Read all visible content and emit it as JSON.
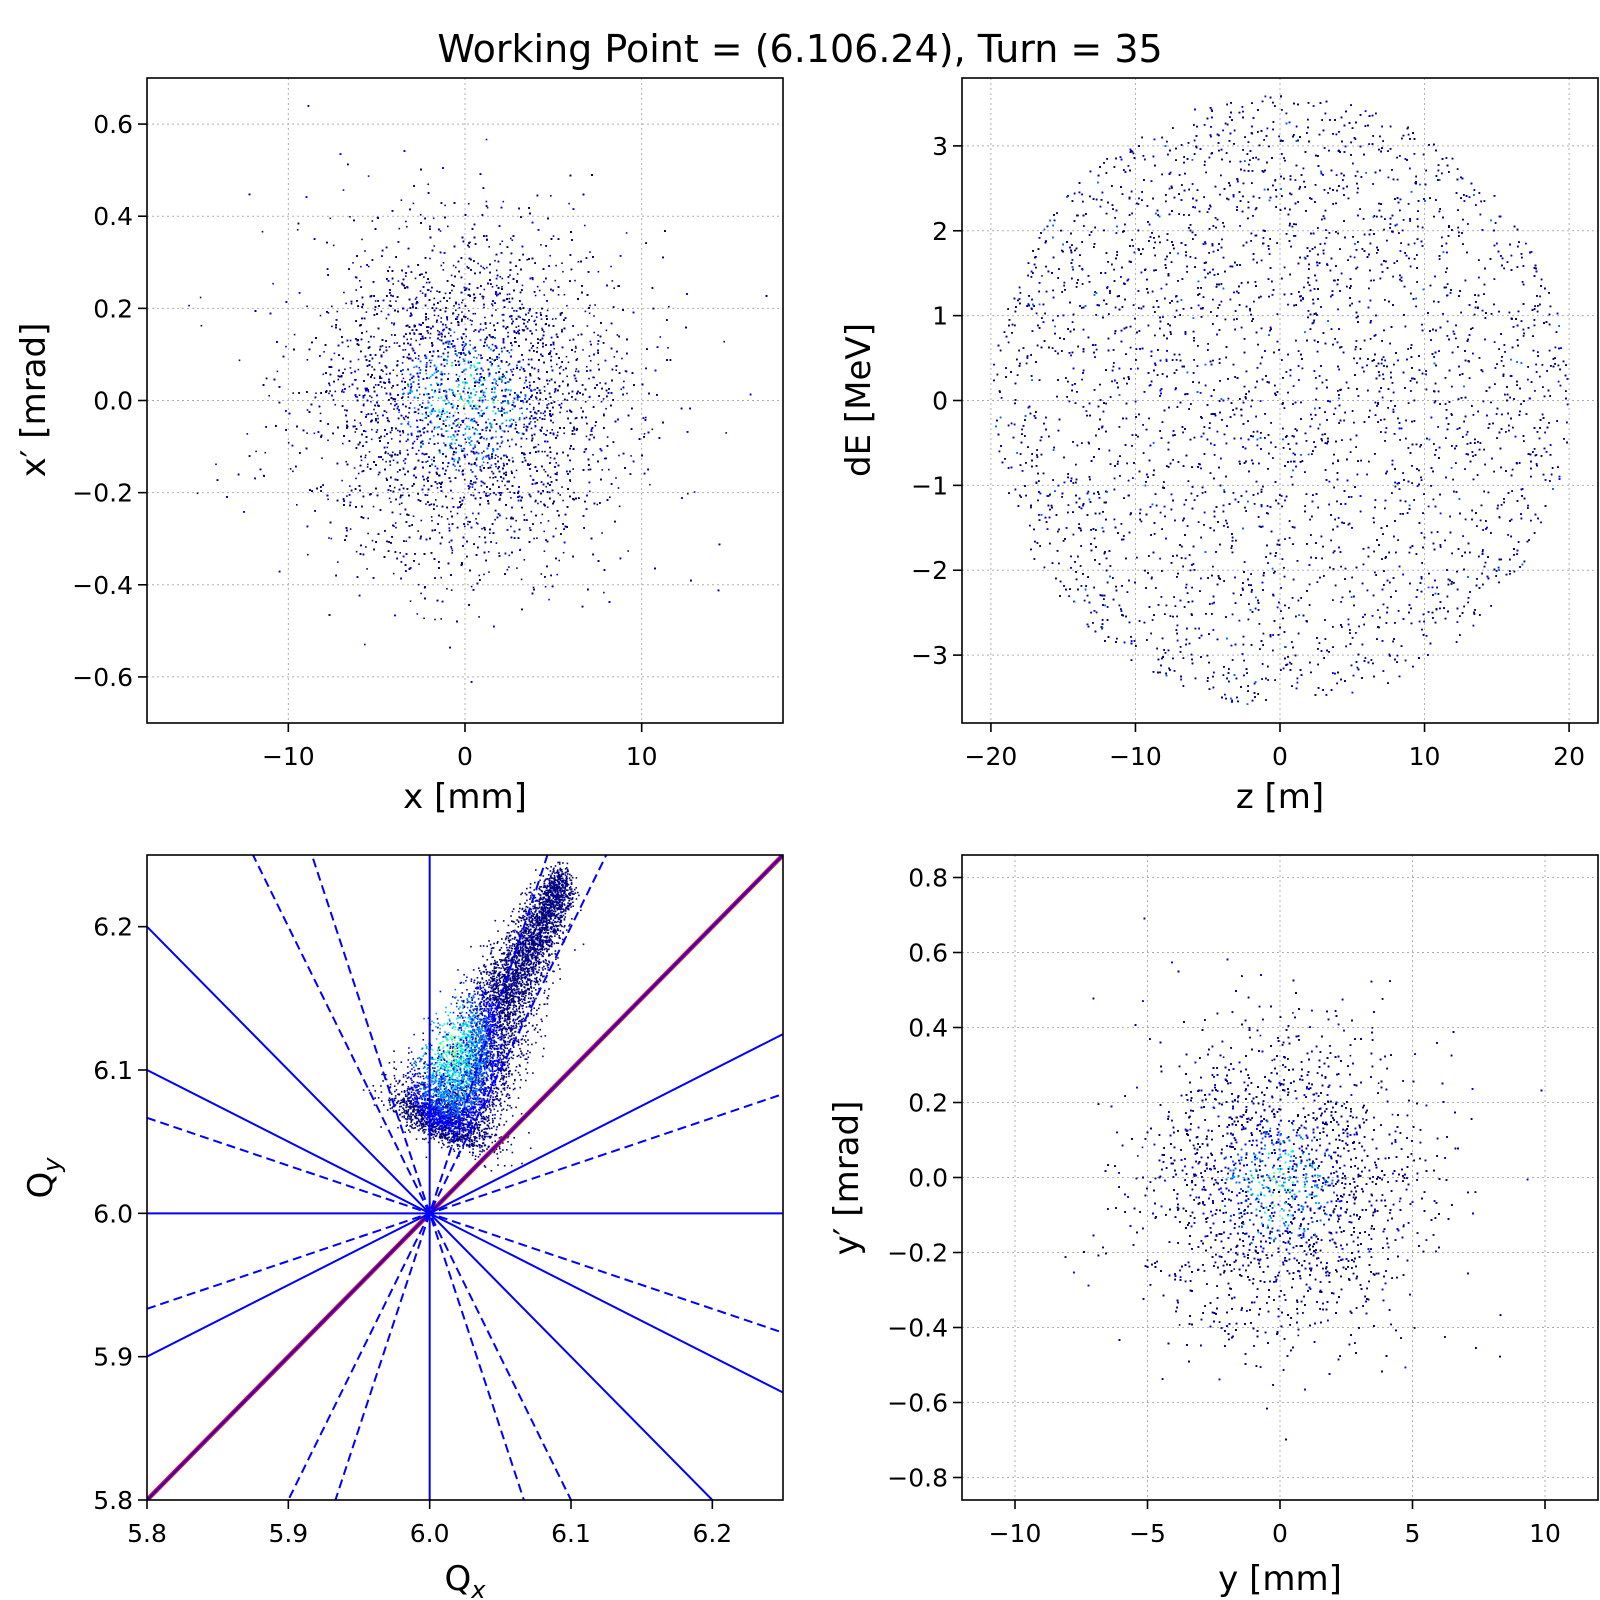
{
  "figure": {
    "suptitle": "Working Point = (6.106.24), Turn = 35"
  },
  "colors": {
    "frame": "#000000",
    "grid": "#b0b0b0",
    "resonance_line": "#0000ff",
    "diagonal": "#ff0000",
    "density_map": [
      "#000080",
      "#0000ff",
      "#0066ff",
      "#00b4ff",
      "#00ffd0",
      "#7fff7f",
      "#ffff00"
    ]
  },
  "chart_data": [
    {
      "id": "xx",
      "type": "heatmap",
      "title": "",
      "xlabel": "x [mm]",
      "ylabel": "x′ [mrad]",
      "xlim": [
        -18,
        18
      ],
      "ylim": [
        -0.7,
        0.7
      ],
      "xticks": [
        -10,
        0,
        10
      ],
      "xtick_labels": [
        "−10",
        "0",
        "10"
      ],
      "yticks": [
        -0.6,
        -0.4,
        -0.2,
        0.0,
        0.2,
        0.4,
        0.6
      ],
      "ytick_labels": [
        "−0.6",
        "−0.4",
        "−0.2",
        "0.0",
        "0.2",
        "0.4",
        "0.6"
      ],
      "grid": true,
      "distribution": {
        "shape": "gaussian",
        "center": [
          0,
          0
        ],
        "sigma": [
          4.5,
          0.18
        ],
        "correlation": 0,
        "particles": 14000,
        "peak_region": [
          [
            -2,
            2
          ],
          [
            -0.05,
            0.08
          ]
        ]
      }
    },
    {
      "id": "zdE",
      "type": "heatmap",
      "title": "",
      "xlabel": "z [m]",
      "ylabel": "dE [MeV]",
      "xlim": [
        -22,
        22
      ],
      "ylim": [
        -3.8,
        3.8
      ],
      "xticks": [
        -20,
        -10,
        0,
        10,
        20
      ],
      "xtick_labels": [
        "−20",
        "−10",
        "0",
        "10",
        "20"
      ],
      "yticks": [
        -3,
        -2,
        -1,
        0,
        1,
        2,
        3
      ],
      "ytick_labels": [
        "−3",
        "−2",
        "−1",
        "0",
        "1",
        "2",
        "3"
      ],
      "grid": true,
      "distribution": {
        "shape": "uniform-ellipse",
        "center": [
          0,
          0
        ],
        "semi_axes": [
          20,
          3.6
        ],
        "particles": 16000
      }
    },
    {
      "id": "tune",
      "type": "scatter",
      "title": "",
      "xlabel": "Q",
      "xlabel_sub": "x",
      "ylabel": "Q",
      "ylabel_sub": "y",
      "xlim": [
        5.8,
        6.25
      ],
      "ylim": [
        5.8,
        6.25
      ],
      "xticks": [
        5.8,
        5.9,
        6.0,
        6.1,
        6.2
      ],
      "xtick_labels": [
        "5.8",
        "5.9",
        "6.0",
        "6.1",
        "6.2"
      ],
      "yticks": [
        5.8,
        5.9,
        6.0,
        6.1,
        6.2
      ],
      "ytick_labels": [
        "5.8",
        "5.9",
        "6.0",
        "6.1",
        "6.2"
      ],
      "grid": false,
      "resonance_lines": [
        {
          "kind": "diagonal",
          "slope": 1,
          "style": "solid",
          "color": "#ff0000"
        },
        {
          "kind": "vertical",
          "x": 6.0,
          "style": "solid"
        },
        {
          "kind": "horizontal",
          "y": 6.0,
          "style": "solid"
        },
        {
          "kind": "line",
          "slope": 0.5,
          "style": "solid"
        },
        {
          "kind": "line",
          "slope": -0.5,
          "style": "solid"
        },
        {
          "kind": "line",
          "slope": 1,
          "style": "solid"
        },
        {
          "kind": "line",
          "slope": -1,
          "style": "solid"
        },
        {
          "kind": "line",
          "slope": 0.333,
          "style": "dashed"
        },
        {
          "kind": "line",
          "slope": -0.333,
          "style": "dashed"
        },
        {
          "kind": "line",
          "slope": 2,
          "style": "dashed"
        },
        {
          "kind": "line",
          "slope": 3,
          "style": "dashed"
        },
        {
          "kind": "line",
          "slope": -2,
          "style": "dashed"
        },
        {
          "kind": "line",
          "slope": -3,
          "style": "dashed"
        }
      ],
      "distribution": {
        "shape": "footprint",
        "start": [
          6.005,
          6.06
        ],
        "end": [
          6.095,
          6.235
        ],
        "particles": 7000,
        "peak": [
          6.015,
          6.115
        ]
      }
    },
    {
      "id": "yy",
      "type": "heatmap",
      "title": "",
      "xlabel": "y [mm]",
      "ylabel": "y′ [mrad]",
      "xlim": [
        -12,
        12
      ],
      "ylim": [
        -0.86,
        0.86
      ],
      "xticks": [
        -10,
        -5,
        0,
        5,
        10
      ],
      "xtick_labels": [
        "−10",
        "−5",
        "0",
        "5",
        "10"
      ],
      "yticks": [
        -0.8,
        -0.6,
        -0.4,
        -0.2,
        0.0,
        0.2,
        0.4,
        0.6,
        0.8
      ],
      "ytick_labels": [
        "−0.8",
        "−0.6",
        "−0.4",
        "−0.2",
        "0.0",
        "0.2",
        "0.4",
        "0.6",
        "0.8"
      ],
      "grid": true,
      "distribution": {
        "shape": "gaussian",
        "center": [
          0,
          -0.02
        ],
        "sigma": [
          2.6,
          0.2
        ],
        "correlation": 0,
        "particles": 14000,
        "peak_region": [
          [
            -1.5,
            1.5
          ],
          [
            -0.1,
            0.1
          ]
        ]
      }
    }
  ]
}
